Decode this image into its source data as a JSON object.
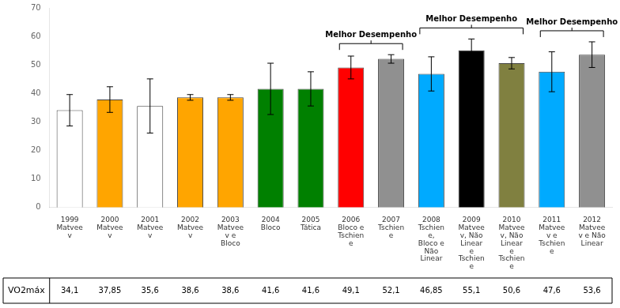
{
  "chart_data": {
    "type": "bar",
    "categories": [
      "1999\nMatvee\nv",
      "2000\nMatvee\nv",
      "2001\nMatvee\nv",
      "2002\nMatvee\nv",
      "2003\nMatvee\nv e\nBloco",
      "2004\nBloco",
      "2005\nTática",
      "2006\nBloco e\nTschien\ne",
      "2007\nTschien\ne",
      "2008\nTschien\ne,\nBloco e\nNão\nLinear",
      "2009\nMatvee\nv, Não\nLinear\ne\nTschien\ne",
      "2010\nMatvee\nv, Não\nLinear\ne\nTschien\ne",
      "2011\nMatvee\nv e\nTschien\ne",
      "2012\nMatvee\nv e Não\nLinear"
    ],
    "values": [
      34.1,
      37.85,
      35.6,
      38.6,
      38.6,
      41.6,
      41.6,
      49.1,
      52.1,
      46.85,
      55.1,
      50.6,
      47.6,
      53.6
    ],
    "errors": [
      5.5,
      4.5,
      9.5,
      1.0,
      1.0,
      9.0,
      6.0,
      4.0,
      1.5,
      6.0,
      4.0,
      2.0,
      7.0,
      4.5
    ],
    "colors": [
      "white",
      "#FFA500",
      "white",
      "#FFA500",
      "#FFA500",
      "#008000",
      "#008000",
      "red",
      "#909090",
      "#00AAFF",
      "black",
      "#808040",
      "#00AAFF",
      "#909090"
    ],
    "data_labels": true,
    "value_labels": [
      "34,1",
      "37,85",
      "35,6",
      "38,6",
      "38,6",
      "41,6",
      "41,6",
      "49,1",
      "52,1",
      "46,85",
      "55,1",
      "50,6",
      "47,6",
      "53,6"
    ],
    "row_label": "VO2máx",
    "annotations": [
      {
        "text": "Melhor Desempenho",
        "bars": [
          7,
          8
        ]
      },
      {
        "text": "Melhor Desempenho",
        "bars": [
          9,
          11
        ]
      },
      {
        "text": "Melhor Desempenho",
        "bars": [
          12,
          13
        ]
      }
    ],
    "ylim": [
      0,
      70
    ],
    "yticks": [
      0,
      10,
      20,
      30,
      40,
      50,
      60,
      70
    ],
    "grid": false
  }
}
